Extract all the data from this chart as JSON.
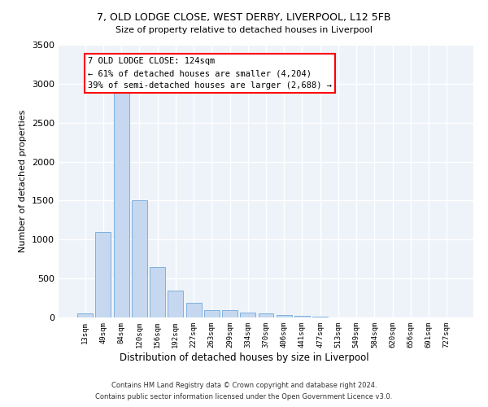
{
  "title_line1": "7, OLD LODGE CLOSE, WEST DERBY, LIVERPOOL, L12 5FB",
  "title_line2": "Size of property relative to detached houses in Liverpool",
  "xlabel": "Distribution of detached houses by size in Liverpool",
  "ylabel": "Number of detached properties",
  "bar_color": "#c5d8f0",
  "bar_edge_color": "#5b9bd5",
  "categories": [
    "13sqm",
    "49sqm",
    "84sqm",
    "120sqm",
    "156sqm",
    "192sqm",
    "227sqm",
    "263sqm",
    "299sqm",
    "334sqm",
    "370sqm",
    "406sqm",
    "441sqm",
    "477sqm",
    "513sqm",
    "549sqm",
    "584sqm",
    "620sqm",
    "656sqm",
    "691sqm",
    "727sqm"
  ],
  "values": [
    50,
    1100,
    2900,
    1500,
    650,
    340,
    185,
    95,
    90,
    65,
    50,
    30,
    20,
    10,
    5,
    5,
    3,
    2,
    2,
    1,
    1
  ],
  "ylim": [
    0,
    3500
  ],
  "yticks": [
    0,
    500,
    1000,
    1500,
    2000,
    2500,
    3000,
    3500
  ],
  "annotation_line1": "7 OLD LODGE CLOSE: 124sqm",
  "annotation_line2": "← 61% of detached houses are smaller (4,204)",
  "annotation_line3": "39% of semi-detached houses are larger (2,688) →",
  "annotation_box_color": "white",
  "annotation_box_edge": "red",
  "background_color": "#eef3f9",
  "grid_color": "white",
  "footer_line1": "Contains HM Land Registry data © Crown copyright and database right 2024.",
  "footer_line2": "Contains public sector information licensed under the Open Government Licence v3.0."
}
